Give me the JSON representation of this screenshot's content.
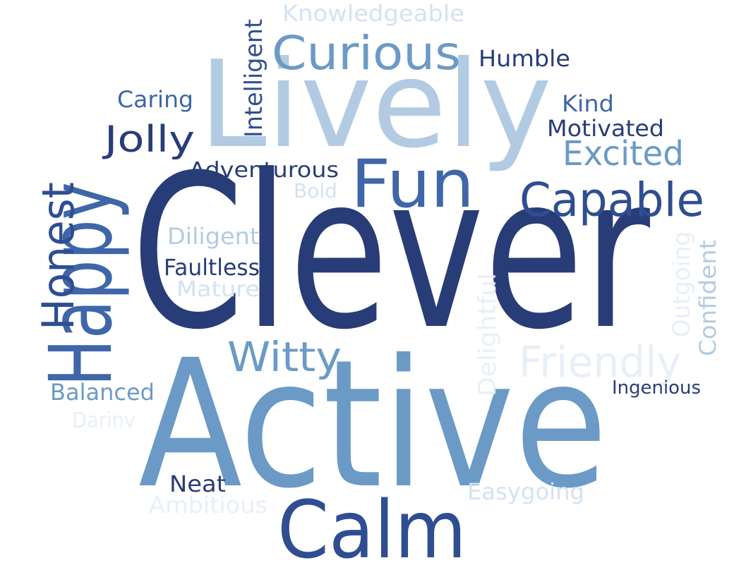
{
  "palette": {
    "darkest": "#283d77",
    "dark": "#2f4e92",
    "mid_dark": "#3e66a8",
    "mid": "#6b9ac6",
    "light": "#b3cbe2",
    "lighter": "#d4e2f1",
    "lightest": "#e8eff7"
  },
  "words": [
    {
      "text": "Clever",
      "color": "#283d77",
      "rotated": false
    },
    {
      "text": "Active",
      "color": "#6b9ac6",
      "rotated": false
    },
    {
      "text": "Lively",
      "color": "#b3cbe2",
      "rotated": false
    },
    {
      "text": "Happy",
      "color": "#3e66a8",
      "rotated": true
    },
    {
      "text": "Calm",
      "color": "#2f4e92",
      "rotated": false
    },
    {
      "text": "Fun",
      "color": "#3e66a8",
      "rotated": false
    },
    {
      "text": "Curious",
      "color": "#6b9ac6",
      "rotated": false
    },
    {
      "text": "Capable",
      "color": "#2f4e92",
      "rotated": false
    },
    {
      "text": "Honest",
      "color": "#2f4e92",
      "rotated": true
    },
    {
      "text": "Witty",
      "color": "#6b9ac6",
      "rotated": false
    },
    {
      "text": "Friendly",
      "color": "#e8eff7",
      "rotated": false
    },
    {
      "text": "Jolly",
      "color": "#283d77",
      "rotated": false
    },
    {
      "text": "Excited",
      "color": "#6b9ac6",
      "rotated": false
    },
    {
      "text": "Knowledgeable",
      "color": "#d4e2f1",
      "rotated": false
    },
    {
      "text": "Humble",
      "color": "#283d77",
      "rotated": false
    },
    {
      "text": "Intelligent",
      "color": "#2f4e92",
      "rotated": true
    },
    {
      "text": "Caring",
      "color": "#3e66a8",
      "rotated": false
    },
    {
      "text": "Kind",
      "color": "#3e66a8",
      "rotated": false
    },
    {
      "text": "Motivated",
      "color": "#283d77",
      "rotated": false
    },
    {
      "text": "Adventurous",
      "color": "#283d77",
      "rotated": false
    },
    {
      "text": "Bold",
      "color": "#d4e2f1",
      "rotated": false
    },
    {
      "text": "Diligent",
      "color": "#b3cbe2",
      "rotated": false
    },
    {
      "text": "Faultless",
      "color": "#283d77",
      "rotated": false
    },
    {
      "text": "Mature",
      "color": "#d4e2f1",
      "rotated": false
    },
    {
      "text": "Outgoing",
      "color": "#e8eff7",
      "rotated": true
    },
    {
      "text": "Confident",
      "color": "#b3cbe2",
      "rotated": true
    },
    {
      "text": "Delightful",
      "color": "#e8eff7",
      "rotated": true
    },
    {
      "text": "Balanced",
      "color": "#6b9ac6",
      "rotated": false
    },
    {
      "text": "Darinv",
      "color": "#e8eff7",
      "rotated": false
    },
    {
      "text": "Ingenious",
      "color": "#283d77",
      "rotated": false
    },
    {
      "text": "Neat",
      "color": "#283d77",
      "rotated": false
    },
    {
      "text": "Ambitious",
      "color": "#e8eff7",
      "rotated": false
    },
    {
      "text": "Easygoing",
      "color": "#d4e2f1",
      "rotated": false
    }
  ]
}
